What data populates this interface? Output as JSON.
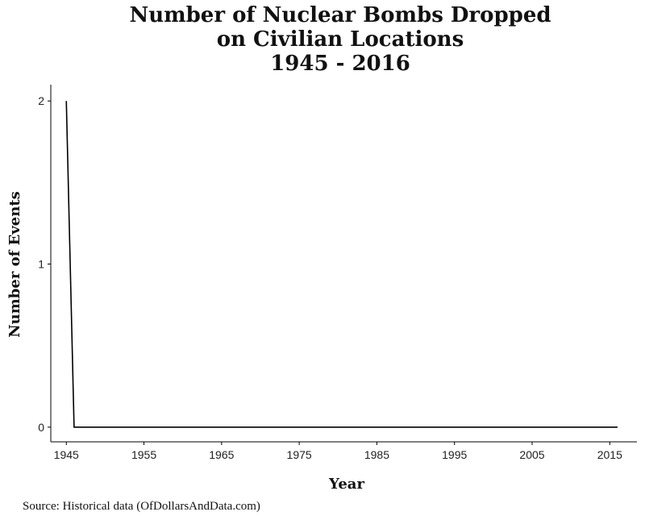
{
  "chart_data": {
    "type": "line",
    "title_lines": [
      "Number of Nuclear Bombs Dropped",
      "on Civilian Locations",
      "1945 - 2016"
    ],
    "xlabel": "Year",
    "ylabel": "Number of Events",
    "source": "Source:  Historical data (OfDollarsAndData.com)",
    "x": [
      1945,
      1946,
      1947,
      1948,
      1949,
      1950,
      1951,
      1952,
      1953,
      1954,
      1955,
      1956,
      1957,
      1958,
      1959,
      1960,
      1961,
      1962,
      1963,
      1964,
      1965,
      1966,
      1967,
      1968,
      1969,
      1970,
      1971,
      1972,
      1973,
      1974,
      1975,
      1976,
      1977,
      1978,
      1979,
      1980,
      1981,
      1982,
      1983,
      1984,
      1985,
      1986,
      1987,
      1988,
      1989,
      1990,
      1991,
      1992,
      1993,
      1994,
      1995,
      1996,
      1997,
      1998,
      1999,
      2000,
      2001,
      2002,
      2003,
      2004,
      2005,
      2006,
      2007,
      2008,
      2009,
      2010,
      2011,
      2012,
      2013,
      2014,
      2015,
      2016
    ],
    "series": [
      {
        "values": [
          2,
          0,
          0,
          0,
          0,
          0,
          0,
          0,
          0,
          0,
          0,
          0,
          0,
          0,
          0,
          0,
          0,
          0,
          0,
          0,
          0,
          0,
          0,
          0,
          0,
          0,
          0,
          0,
          0,
          0,
          0,
          0,
          0,
          0,
          0,
          0,
          0,
          0,
          0,
          0,
          0,
          0,
          0,
          0,
          0,
          0,
          0,
          0,
          0,
          0,
          0,
          0,
          0,
          0,
          0,
          0,
          0,
          0,
          0,
          0,
          0,
          0,
          0,
          0,
          0,
          0,
          0,
          0,
          0,
          0,
          0,
          0
        ],
        "color": "#000000"
      }
    ],
    "x_ticks": [
      1945,
      1955,
      1965,
      1975,
      1985,
      1995,
      2005,
      2015
    ],
    "x_tick_labels": [
      "1945",
      "1955",
      "1965",
      "1975",
      "1985",
      "1995",
      "2005",
      "2015"
    ],
    "y_ticks": [
      0,
      1,
      2
    ],
    "y_tick_labels": [
      "0",
      "1",
      "2"
    ],
    "xlim": [
      1943,
      2018.5
    ],
    "ylim": [
      -0.09,
      2.1
    ],
    "grid": false,
    "legend": "none"
  }
}
